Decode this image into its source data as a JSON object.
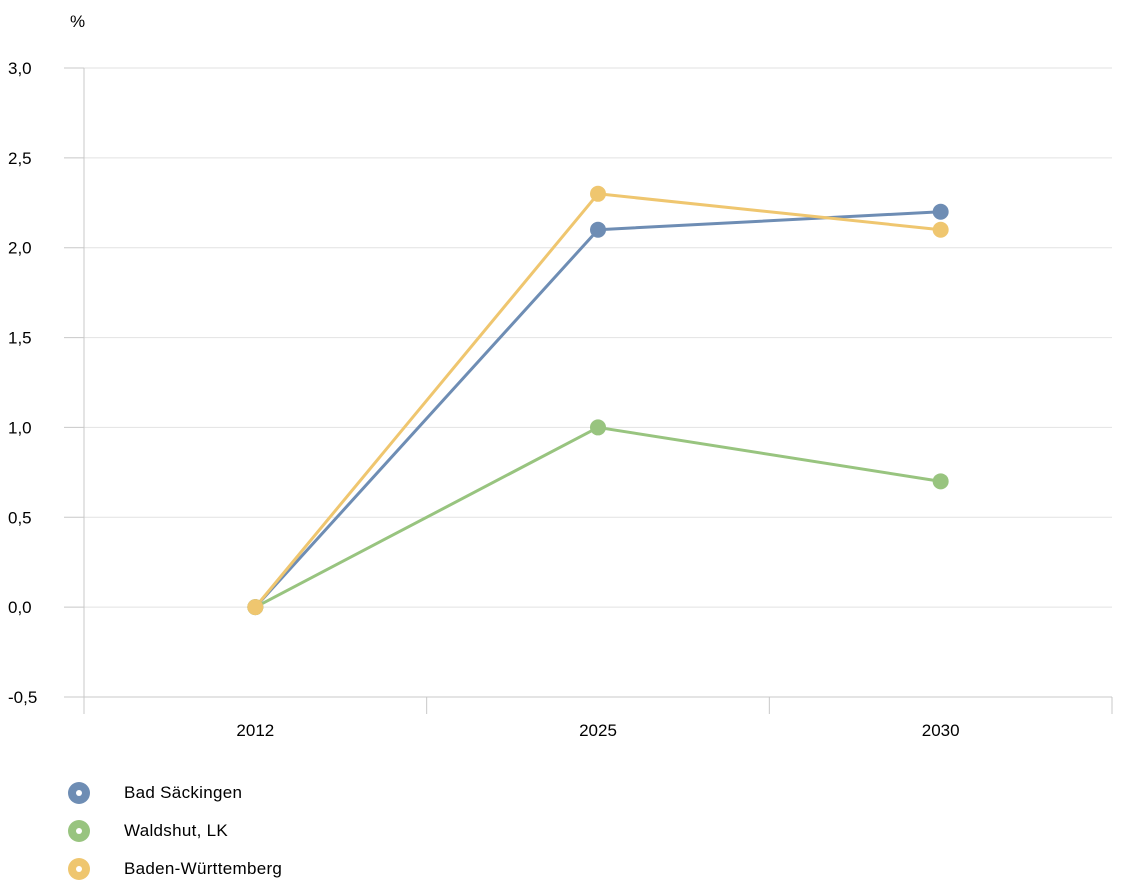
{
  "chart_data": {
    "type": "line",
    "unit_label": "%",
    "categories": [
      "2012",
      "2025",
      "2030"
    ],
    "ylim": [
      -0.5,
      3.0
    ],
    "yticks": [
      3.0,
      2.5,
      2.0,
      1.5,
      1.0,
      0.5,
      0.0,
      -0.5
    ],
    "ytick_labels": [
      "3,0",
      "2,5",
      "2,0",
      "1,5",
      "1,0",
      "0,5",
      "0,0",
      "-0,5"
    ],
    "grid": "horizontal",
    "legend_position": "bottom-left",
    "series": [
      {
        "name": "Bad Säckingen",
        "color": "#6e8db4",
        "values": [
          0.0,
          2.1,
          2.2
        ]
      },
      {
        "name": "Waldshut, LK",
        "color": "#98c47f",
        "values": [
          0.0,
          1.0,
          0.7
        ]
      },
      {
        "name": "Baden-Württemberg",
        "color": "#efc66f",
        "values": [
          0.0,
          2.3,
          2.1
        ]
      }
    ]
  }
}
